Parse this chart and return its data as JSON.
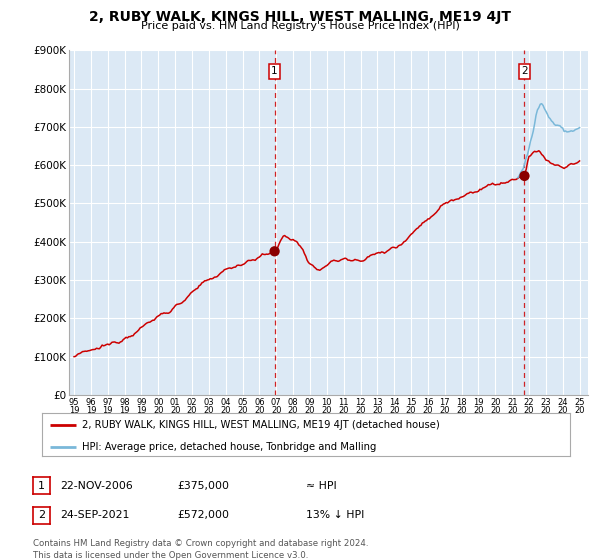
{
  "title": "2, RUBY WALK, KINGS HILL, WEST MALLING, ME19 4JT",
  "subtitle": "Price paid vs. HM Land Registry's House Price Index (HPI)",
  "bg_color": "#dce9f5",
  "grid_color": "#ffffff",
  "line_color": "#cc0000",
  "hpi_color": "#7ab8d9",
  "yticks": [
    0,
    100000,
    200000,
    300000,
    400000,
    500000,
    600000,
    700000,
    800000,
    900000
  ],
  "ylim": [
    0,
    900000
  ],
  "xlim_start": 1994.7,
  "xlim_end": 2025.5,
  "sale1_date": 2006.9,
  "sale1_price": 375000,
  "sale1_label": "1",
  "sale2_date": 2021.73,
  "sale2_price": 572000,
  "sale2_label": "2",
  "footer_text": "Contains HM Land Registry data © Crown copyright and database right 2024.\nThis data is licensed under the Open Government Licence v3.0.",
  "legend_line1": "2, RUBY WALK, KINGS HILL, WEST MALLING, ME19 4JT (detached house)",
  "legend_line2": "HPI: Average price, detached house, Tonbridge and Malling",
  "table_row1": [
    "1",
    "22-NOV-2006",
    "£375,000",
    "≈ HPI"
  ],
  "table_row2": [
    "2",
    "24-SEP-2021",
    "£572,000",
    "13% ↓ HPI"
  ]
}
